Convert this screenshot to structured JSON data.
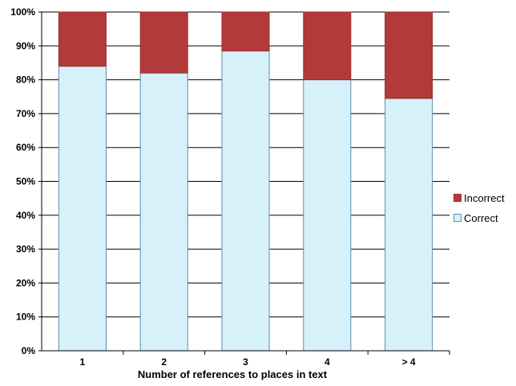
{
  "chart_data": {
    "type": "bar",
    "stacked": true,
    "categories": [
      "1",
      "2",
      "3",
      "4",
      "> 4"
    ],
    "series": [
      {
        "name": "Correct",
        "values": [
          84,
          82,
          88.5,
          80,
          74.5
        ],
        "color": "#d6f1f9",
        "edge": "#5a8fae"
      },
      {
        "name": "Incorrect",
        "values": [
          16,
          18,
          11.5,
          20,
          25.5
        ],
        "color": "#b23a3a",
        "edge": "#9a2f2f"
      }
    ],
    "title": "",
    "xlabel": "Number of references to places in text",
    "ylabel": "",
    "ylim": [
      0,
      100
    ],
    "yticks": [
      "0%",
      "10%",
      "20%",
      "30%",
      "40%",
      "50%",
      "60%",
      "70%",
      "80%",
      "90%",
      "100%"
    ],
    "grid": true,
    "legend": {
      "position": "right",
      "items": [
        "Incorrect",
        "Correct"
      ]
    }
  }
}
